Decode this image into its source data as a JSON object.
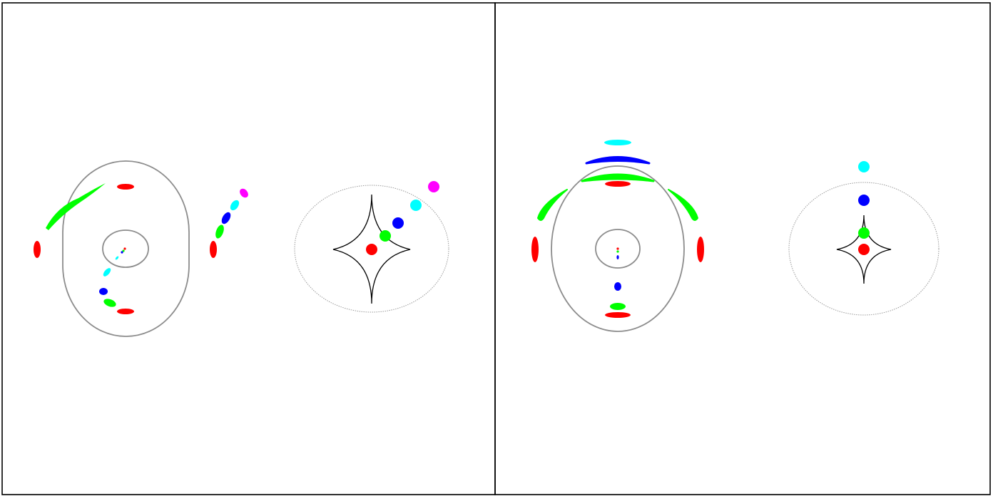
{
  "colors": {
    "background": "#ffffff",
    "frame": "#000000",
    "critical_curve": "#8c8c8c",
    "caustic": "#000000",
    "cut": "#8c8c8c",
    "source_red": "#ff0000",
    "source_green": "#00ff00",
    "source_blue": "#0000ff",
    "source_cyan": "#00ffff",
    "source_magenta": "#ff00ff"
  },
  "panels": [
    {
      "id": "left",
      "description_shape": "elliptical lens, sources moving diagonally away from caustic"
    },
    {
      "id": "right",
      "description_shape": "elliptical lens, sources moving vertically away from caustic"
    }
  ]
}
